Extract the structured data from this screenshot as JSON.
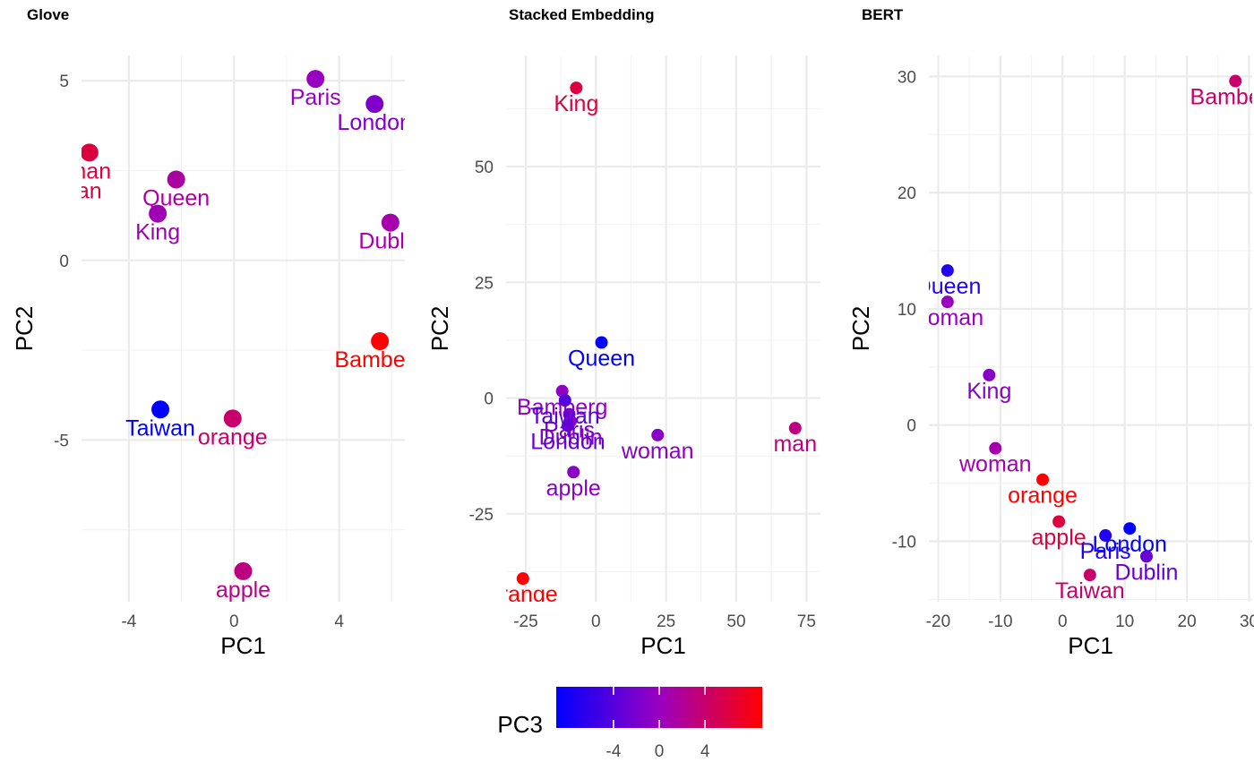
{
  "chart_data": [
    {
      "type": "scatter",
      "title": "Glove",
      "xlabel": "PC1",
      "ylabel": "PC2",
      "xlim": [
        -5.8,
        6.5
      ],
      "ylim": [
        -9.5,
        5.7
      ],
      "xticks": [
        -4,
        0,
        4
      ],
      "yticks": [
        -5,
        0,
        5
      ],
      "points": [
        {
          "label": "Paris",
          "x": 3.1,
          "y": 5.05,
          "pc3": 0
        },
        {
          "label": "London",
          "x": 5.35,
          "y": 4.35,
          "pc3": -1.5
        },
        {
          "label": "man",
          "x": -5.5,
          "y": 3.0,
          "pc3": 6
        },
        {
          "label": "woman",
          "x": -6.4,
          "y": 2.45,
          "pc3": 6
        },
        {
          "label": "Queen",
          "x": -2.2,
          "y": 2.25,
          "pc3": 1.5
        },
        {
          "label": "King",
          "x": -2.9,
          "y": 1.3,
          "pc3": 0.5
        },
        {
          "label": "Dublin",
          "x": 5.95,
          "y": 1.05,
          "pc3": 1
        },
        {
          "label": "Bamberg",
          "x": 5.55,
          "y": -2.25,
          "pc3": 9
        },
        {
          "label": "Taiwan",
          "x": -2.8,
          "y": -4.15,
          "pc3": -9
        },
        {
          "label": "orange",
          "x": -0.05,
          "y": -4.4,
          "pc3": 4
        },
        {
          "label": "apple",
          "x": 0.35,
          "y": -8.65,
          "pc3": 3
        }
      ]
    },
    {
      "type": "scatter",
      "title": "Stacked Embedding",
      "xlabel": "PC1",
      "ylabel": "PC2",
      "xlim": [
        -32,
        80
      ],
      "ylim": [
        -44,
        74
      ],
      "xticks": [
        -25,
        0,
        25,
        50,
        75
      ],
      "yticks": [
        -25,
        0,
        25,
        50
      ],
      "points": [
        {
          "label": "King",
          "x": -7,
          "y": 67,
          "pc3": 6
        },
        {
          "label": "Queen",
          "x": 2,
          "y": 12,
          "pc3": -9
        },
        {
          "label": "Bamberg",
          "x": -12,
          "y": 1.5,
          "pc3": -0.5
        },
        {
          "label": "Paris",
          "x": -9.5,
          "y": -3.5,
          "pc3": -2
        },
        {
          "label": "Dublin",
          "x": -9,
          "y": -5,
          "pc3": -1
        },
        {
          "label": "London",
          "x": -10,
          "y": -6,
          "pc3": -3
        },
        {
          "label": "Taiwan",
          "x": -11,
          "y": -0.5,
          "pc3": -4
        },
        {
          "label": "woman",
          "x": 22,
          "y": -8,
          "pc3": -1
        },
        {
          "label": "man",
          "x": 71,
          "y": -6.5,
          "pc3": 3
        },
        {
          "label": "apple",
          "x": -8,
          "y": -16,
          "pc3": -1
        },
        {
          "label": "orange",
          "x": -26,
          "y": -39,
          "pc3": 9
        }
      ]
    },
    {
      "type": "scatter",
      "title": "BERT",
      "xlabel": "PC1",
      "ylabel": "PC2",
      "xlim": [
        -21.5,
        30.5
      ],
      "ylim": [
        -15.2,
        31.8
      ],
      "xticks": [
        -20,
        -10,
        0,
        10,
        20,
        30
      ],
      "yticks": [
        -10,
        0,
        10,
        20,
        30
      ],
      "points": [
        {
          "label": "Bamberg",
          "x": 27.8,
          "y": 29.6,
          "pc3": 4
        },
        {
          "label": "Queen",
          "x": -18.5,
          "y": 13.3,
          "pc3": -7
        },
        {
          "label": "woman",
          "x": -18.5,
          "y": 10.6,
          "pc3": 0
        },
        {
          "label": "King",
          "x": -11.8,
          "y": 4.3,
          "pc3": -1
        },
        {
          "label": "woman",
          "x": -10.8,
          "y": -2.0,
          "pc3": 1
        },
        {
          "label": "orange",
          "x": -3.2,
          "y": -4.7,
          "pc3": 9
        },
        {
          "label": "apple",
          "x": -0.6,
          "y": -8.3,
          "pc3": 6
        },
        {
          "label": "Paris",
          "x": 6.9,
          "y": -9.5,
          "pc3": -7
        },
        {
          "label": "London",
          "x": 10.8,
          "y": -8.9,
          "pc3": -9
        },
        {
          "label": "Dublin",
          "x": 13.5,
          "y": -11.3,
          "pc3": -3
        },
        {
          "label": "Taiwan",
          "x": 4.4,
          "y": -12.9,
          "pc3": 4
        }
      ]
    }
  ],
  "legend": {
    "title": "PC3",
    "range": [
      -9,
      9
    ],
    "ticks": [
      -4,
      0,
      4
    ],
    "colors": [
      "#0000ff",
      "#9a00c0",
      "#ff0000"
    ]
  }
}
